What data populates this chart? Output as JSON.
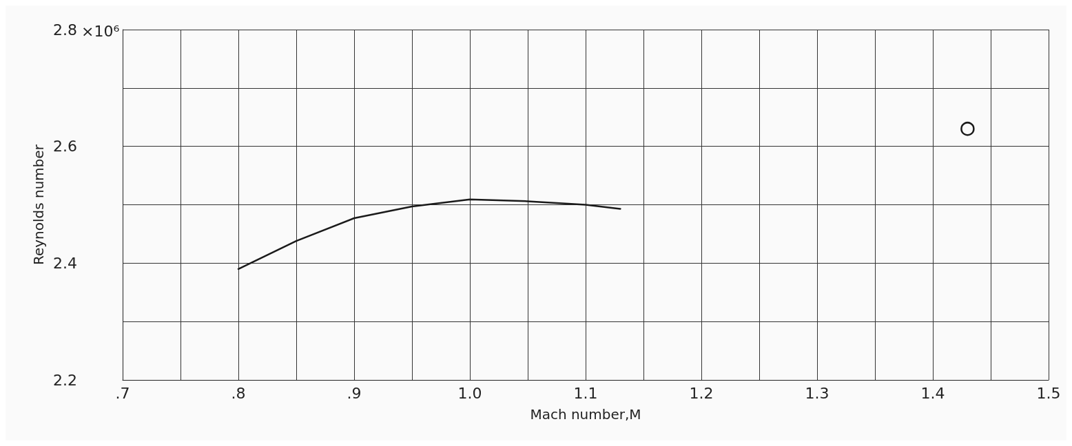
{
  "chart_data": {
    "type": "line",
    "xlabel": "Mach number,M",
    "ylabel": "Reynolds number",
    "xlim": [
      0.7,
      1.5
    ],
    "ylim": [
      2.2,
      2.8
    ],
    "xticks": [
      {
        "value": 0.7,
        "label": ".7"
      },
      {
        "value": 0.75,
        "label": null
      },
      {
        "value": 0.8,
        "label": ".8"
      },
      {
        "value": 0.85,
        "label": null
      },
      {
        "value": 0.9,
        "label": ".9"
      },
      {
        "value": 0.95,
        "label": null
      },
      {
        "value": 1.0,
        "label": "1.0"
      },
      {
        "value": 1.05,
        "label": null
      },
      {
        "value": 1.1,
        "label": "1.1"
      },
      {
        "value": 1.15,
        "label": null
      },
      {
        "value": 1.2,
        "label": "1.2"
      },
      {
        "value": 1.25,
        "label": null
      },
      {
        "value": 1.3,
        "label": "1.3"
      },
      {
        "value": 1.35,
        "label": null
      },
      {
        "value": 1.4,
        "label": "1.4"
      },
      {
        "value": 1.45,
        "label": null
      },
      {
        "value": 1.5,
        "label": "1.5"
      }
    ],
    "yticks": [
      2.2,
      {
        "value": 2.3,
        "label": null
      },
      2.4,
      {
        "value": 2.5,
        "label": null
      },
      2.6,
      {
        "value": 2.7,
        "label": null
      },
      2.8
    ],
    "annotations": [
      "×10⁶"
    ],
    "grid": true,
    "series": [
      {
        "marker": "none",
        "line_style": "solid",
        "color": "#1a1a1a",
        "x": [
          0.8,
          0.85,
          0.9,
          0.95,
          1.0,
          1.05,
          1.1,
          1.13
        ],
        "values": [
          2.39,
          2.438,
          2.477,
          2.497,
          2.509,
          2.506,
          2.5,
          2.493
        ]
      },
      {
        "type": "scatter",
        "marker": "circle",
        "color": "#1a1a1a",
        "x": [
          1.43
        ],
        "values": [
          2.63
        ]
      }
    ]
  }
}
